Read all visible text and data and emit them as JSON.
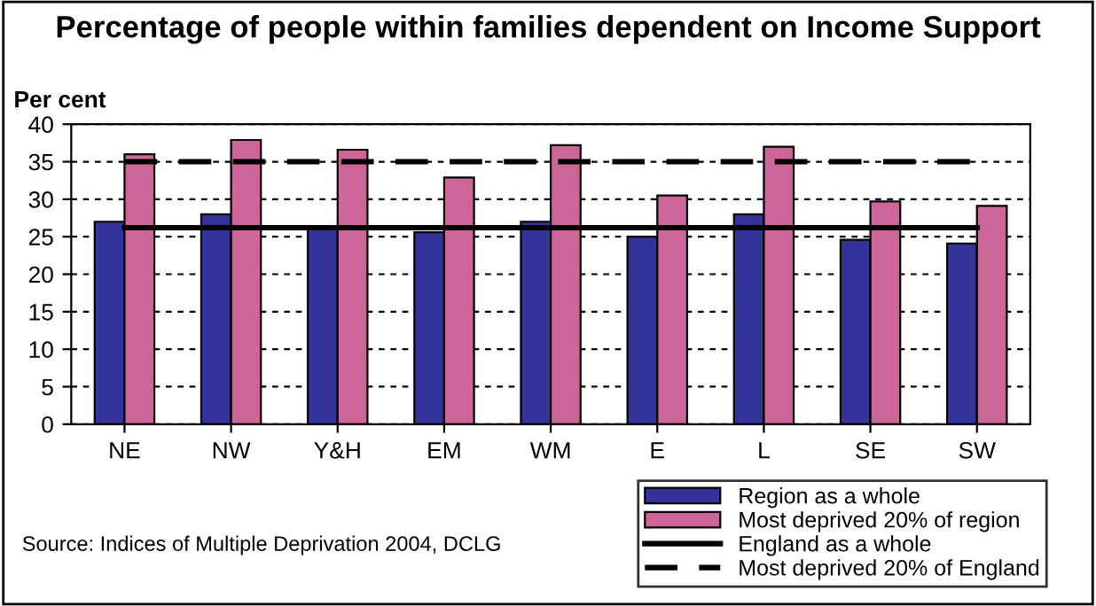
{
  "chart_data": {
    "type": "bar",
    "title": "Percentage of people within families dependent on Income Support",
    "ylabel": "Per cent",
    "categories": [
      "NE",
      "NW",
      "Y&H",
      "EM",
      "WM",
      "E",
      "L",
      "SE",
      "SW"
    ],
    "series": [
      {
        "name": "Region as a whole",
        "color": "#333399",
        "values": [
          27,
          28,
          26,
          25.6,
          27,
          25,
          28,
          24.6,
          24.1
        ]
      },
      {
        "name": "Most deprived 20% of region",
        "color": "#cc6699",
        "values": [
          36,
          37.9,
          36.6,
          32.9,
          37.2,
          30.5,
          37,
          29.7,
          29.1
        ]
      },
      {
        "name": "England as a whole",
        "type": "line",
        "color": "#000000",
        "line_style": "solid",
        "values": [
          26.2,
          26.2,
          26.2,
          26.2,
          26.2,
          26.2,
          26.2,
          26.2,
          26.2
        ]
      },
      {
        "name": "Most deprived 20% of England",
        "type": "line",
        "color": "#000000",
        "line_style": "dashed",
        "values": [
          35,
          35,
          35,
          35,
          35,
          35,
          35,
          35,
          35
        ]
      }
    ],
    "ylim": [
      0,
      40
    ],
    "yticks": [
      0,
      5,
      10,
      15,
      20,
      25,
      30,
      35,
      40
    ],
    "grid": "y",
    "legend": "bottom right",
    "annotations": [
      "Source: Indices of Multiple Deprivation 2004, DCLG"
    ]
  }
}
